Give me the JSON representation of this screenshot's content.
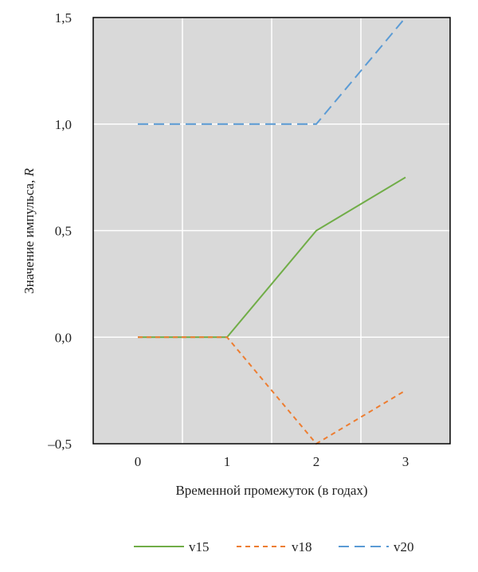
{
  "chart_data": {
    "type": "line",
    "title": "",
    "xlabel": "Временной промежуток (в годах)",
    "ylabel": "Значение импульса, ",
    "ylabel_italic": "R",
    "x": [
      0,
      1,
      2,
      3
    ],
    "xlim": [
      -0.5,
      3.5
    ],
    "ylim": [
      -0.5,
      1.5
    ],
    "x_ticks": [
      0,
      1,
      2,
      3
    ],
    "x_tick_labels": [
      "0",
      "1",
      "2",
      "3"
    ],
    "y_ticks": [
      -0.5,
      0,
      0.5,
      1,
      1.5
    ],
    "y_tick_labels": [
      "–0,5",
      "0,0",
      "0,5",
      "1,0",
      "1,5"
    ],
    "grid": true,
    "background": "#d9d9d9",
    "legend_position": "bottom",
    "series": [
      {
        "name": "v15",
        "values": [
          0,
          0,
          0.5,
          0.75
        ],
        "color": "#70ad47",
        "dash": "solid"
      },
      {
        "name": "v18",
        "values": [
          0,
          0,
          -0.5,
          -0.25
        ],
        "color": "#ed7d31",
        "dash": "short-dash"
      },
      {
        "name": "v20",
        "values": [
          1,
          1,
          1,
          1.5
        ],
        "color": "#5b9bd5",
        "dash": "long-dash"
      }
    ]
  }
}
